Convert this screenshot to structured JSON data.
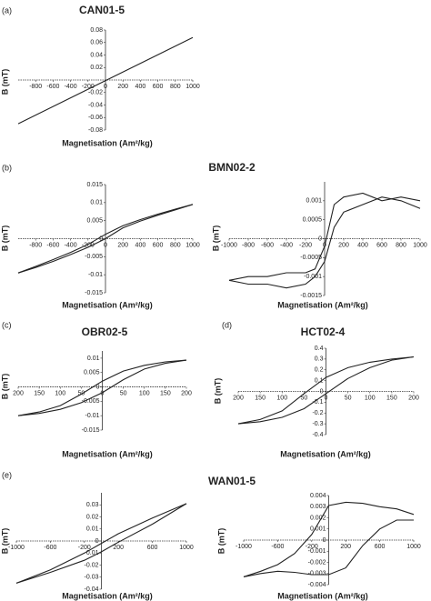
{
  "chart_data": [
    {
      "type": "line",
      "panel_label": "(a)",
      "title": "CAN01-5",
      "x_label": "Magnetisation (Am²/kg)",
      "y_label": "B (mT)",
      "x": [
        -1000,
        1000
      ],
      "series": [
        {
          "color": "#222222",
          "values": [
            -0.07,
            0.068
          ]
        }
      ],
      "xlim": [
        -1000,
        1000
      ],
      "ylim": [
        -0.08,
        0.08
      ],
      "xticks": [
        -800,
        -600,
        -400,
        -200,
        0,
        200,
        400,
        600,
        800,
        1000
      ],
      "yticks": [
        -0.08,
        -0.06,
        -0.04,
        -0.02,
        0.02,
        0.04,
        0.06,
        0.08
      ]
    },
    {
      "type": "line",
      "panel_label": "(b)",
      "title": "BMN02-2",
      "x_label": "Magnetisation (Am²/kg)",
      "y_label": "B (mT)",
      "x": [
        -1000,
        -800,
        -600,
        -400,
        -200,
        0,
        200,
        400,
        600,
        800,
        1000
      ],
      "series": [
        {
          "color": "#222222",
          "values": [
            -0.0095,
            -0.0077,
            -0.0058,
            -0.0038,
            -0.0016,
            0.0012,
            0.0036,
            0.0053,
            0.0068,
            0.0082,
            0.0095
          ]
        },
        {
          "color": "#222222",
          "values": [
            -0.0095,
            -0.008,
            -0.0063,
            -0.0044,
            -0.0024,
            0.0,
            0.003,
            0.0049,
            0.0065,
            0.008,
            0.0095
          ]
        }
      ],
      "xlim": [
        -1000,
        1000
      ],
      "ylim": [
        -0.015,
        0.015
      ],
      "xticks": [
        -800,
        -600,
        -400,
        -200,
        0,
        200,
        400,
        600,
        800,
        1000
      ],
      "yticks": [
        -0.015,
        -0.01,
        -0.005,
        0,
        0.005,
        0.01,
        0.015
      ]
    },
    {
      "type": "line",
      "x_label": "Magnetisation (Am²/kg)",
      "y_label": "B (mT)",
      "x": [
        -1000,
        -800,
        -600,
        -400,
        -200,
        -100,
        0,
        100,
        200,
        400,
        600,
        800,
        1000
      ],
      "series": [
        {
          "color": "#222222",
          "values": [
            -0.0011,
            -0.001,
            -0.001,
            -0.0009,
            -0.0009,
            -0.0008,
            -0.0002,
            0.0009,
            0.0011,
            0.0012,
            0.001,
            0.0011,
            0.001
          ]
        },
        {
          "color": "#222222",
          "values": [
            -0.0011,
            -0.0012,
            -0.0012,
            -0.0013,
            -0.0012,
            -0.001,
            -0.0006,
            0.0003,
            0.0007,
            0.0009,
            0.0011,
            0.001,
            0.0008
          ]
        }
      ],
      "xlim": [
        -1000,
        1000
      ],
      "ylim": [
        -0.0015,
        0.0015
      ],
      "xticks": [
        -1000,
        -800,
        -600,
        -400,
        -200,
        0,
        200,
        400,
        600,
        800,
        1000
      ],
      "yticks": [
        -0.0015,
        -0.001,
        -0.0005,
        0,
        0.0005,
        0.001
      ]
    },
    {
      "type": "line",
      "panel_label": "(c)",
      "title": "OBR02-5",
      "x_label": "Magnetisation (Am²/kg)",
      "y_label": "B (mT)",
      "x": [
        -200,
        -150,
        -100,
        -50,
        0,
        50,
        100,
        150,
        200
      ],
      "series": [
        {
          "color": "#222222",
          "values": [
            -0.01,
            -0.0087,
            -0.0065,
            -0.0025,
            0.002,
            0.0055,
            0.0075,
            0.0087,
            0.0093
          ]
        },
        {
          "color": "#222222",
          "values": [
            -0.01,
            -0.0092,
            -0.0078,
            -0.0055,
            -0.002,
            0.0025,
            0.0062,
            0.0082,
            0.0093
          ]
        }
      ],
      "xlim": [
        -200,
        200
      ],
      "ylim": [
        -0.015,
        0.0125
      ],
      "xticks": [
        {
          "value": -200,
          "label": "200"
        },
        {
          "value": -150,
          "label": "150"
        },
        {
          "value": -100,
          "label": "100"
        },
        {
          "value": -50,
          "label": "50"
        },
        0,
        50,
        100,
        150,
        200
      ],
      "yticks": [
        -0.015,
        -0.01,
        -0.005,
        0,
        0.005,
        0.01
      ]
    },
    {
      "type": "line",
      "panel_label": "(d)",
      "title": "HCT02-4",
      "x_label": "Magnetisation (Am²/kg)",
      "y_label": "B (mT)",
      "x": [
        -200,
        -150,
        -100,
        -50,
        0,
        50,
        100,
        150,
        200
      ],
      "series": [
        {
          "color": "#222222",
          "values": [
            -0.3,
            -0.26,
            -0.18,
            -0.02,
            0.13,
            0.22,
            0.27,
            0.3,
            0.32
          ]
        },
        {
          "color": "#222222",
          "values": [
            -0.3,
            -0.28,
            -0.24,
            -0.16,
            -0.02,
            0.12,
            0.22,
            0.29,
            0.32
          ]
        }
      ],
      "xlim": [
        -200,
        200
      ],
      "ylim": [
        -0.4,
        0.4
      ],
      "xticks": [
        {
          "value": -200,
          "label": "200"
        },
        {
          "value": -150,
          "label": "150"
        },
        {
          "value": -100,
          "label": "100"
        },
        {
          "value": -50,
          "label": "50"
        },
        0,
        50,
        100,
        150,
        200
      ],
      "yticks": [
        -0.4,
        -0.3,
        -0.2,
        -0.1,
        0,
        0.1,
        0.2,
        0.3,
        0.4
      ]
    },
    {
      "type": "line",
      "panel_label": "(e)",
      "title": "WAN01-5",
      "x_label": "Magnetisation (Am²/kg)",
      "y_label": "B (mT)",
      "x": [
        -1000,
        -600,
        -200,
        0,
        200,
        600,
        1000
      ],
      "series": [
        {
          "color": "#222222",
          "values": [
            -0.035,
            -0.024,
            -0.01,
            -0.002,
            0.006,
            0.019,
            0.031
          ]
        },
        {
          "color": "#222222",
          "values": [
            -0.035,
            -0.026,
            -0.016,
            -0.009,
            -0.001,
            0.014,
            0.031
          ]
        }
      ],
      "xlim": [
        -1000,
        1000
      ],
      "ylim": [
        -0.04,
        0.04
      ],
      "xticks": [
        -1000,
        -600,
        -200,
        200,
        600,
        1000
      ],
      "yticks": [
        -0.04,
        -0.03,
        -0.02,
        -0.01,
        0,
        0.01,
        0.02,
        0.03
      ]
    },
    {
      "type": "line",
      "x_label": "Magnetisation (Am²/kg)",
      "y_label": "B (mT)",
      "x": [
        -1000,
        -800,
        -600,
        -400,
        -200,
        0,
        200,
        400,
        600,
        800,
        1000
      ],
      "series": [
        {
          "color": "#222222",
          "values": [
            -0.0033,
            -0.0028,
            -0.0022,
            -0.0012,
            0.0005,
            0.0031,
            0.0034,
            0.0033,
            0.003,
            0.0028,
            0.0023
          ]
        },
        {
          "color": "#222222",
          "values": [
            -0.0033,
            -0.003,
            -0.0028,
            -0.0029,
            -0.0031,
            -0.0031,
            -0.0025,
            -0.0005,
            0.001,
            0.0018,
            0.0018
          ]
        }
      ],
      "xlim": [
        -1000,
        1000
      ],
      "ylim": [
        -0.004,
        0.004
      ],
      "xticks": [
        -1000,
        -600,
        -200,
        200,
        600,
        1000
      ],
      "yticks": [
        -0.004,
        -0.003,
        -0.002,
        -0.001,
        0,
        0.001,
        0.002,
        0.003,
        0.004
      ]
    }
  ]
}
